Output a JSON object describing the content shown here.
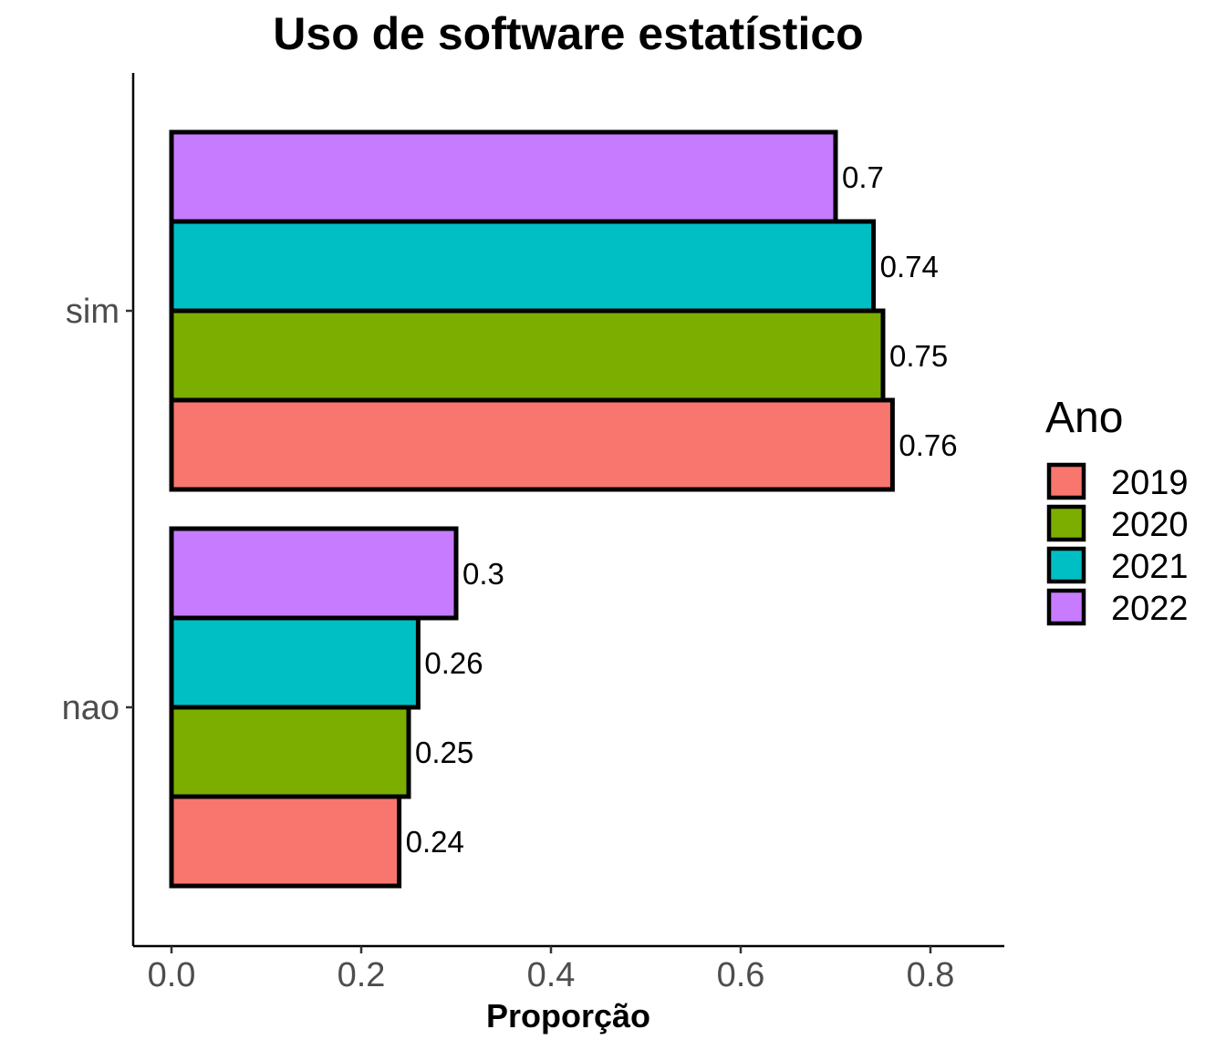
{
  "chart_data": {
    "type": "bar",
    "orientation": "horizontal",
    "title": "Uso de software estatístico",
    "xlabel": "Proporção",
    "ylabel": "",
    "xlim": [
      0,
      0.8
    ],
    "x_ticks": [
      "0.0",
      "0.2",
      "0.4",
      "0.6",
      "0.8"
    ],
    "categories": [
      "nao",
      "sim"
    ],
    "legend": {
      "title": "Ano",
      "position": "right"
    },
    "series": [
      {
        "name": "2019",
        "color": "#F8766D",
        "values": [
          0.24,
          0.76
        ],
        "labels": [
          "0.24",
          "0.76"
        ]
      },
      {
        "name": "2020",
        "color": "#7CAE00",
        "values": [
          0.25,
          0.75
        ],
        "labels": [
          "0.25",
          "0.75"
        ]
      },
      {
        "name": "2021",
        "color": "#00BFC4",
        "values": [
          0.26,
          0.74
        ],
        "labels": [
          "0.26",
          "0.74"
        ]
      },
      {
        "name": "2022",
        "color": "#C77CFF",
        "values": [
          0.3,
          0.7
        ],
        "labels": [
          "0.3",
          "0.7"
        ]
      }
    ],
    "grid": false
  }
}
